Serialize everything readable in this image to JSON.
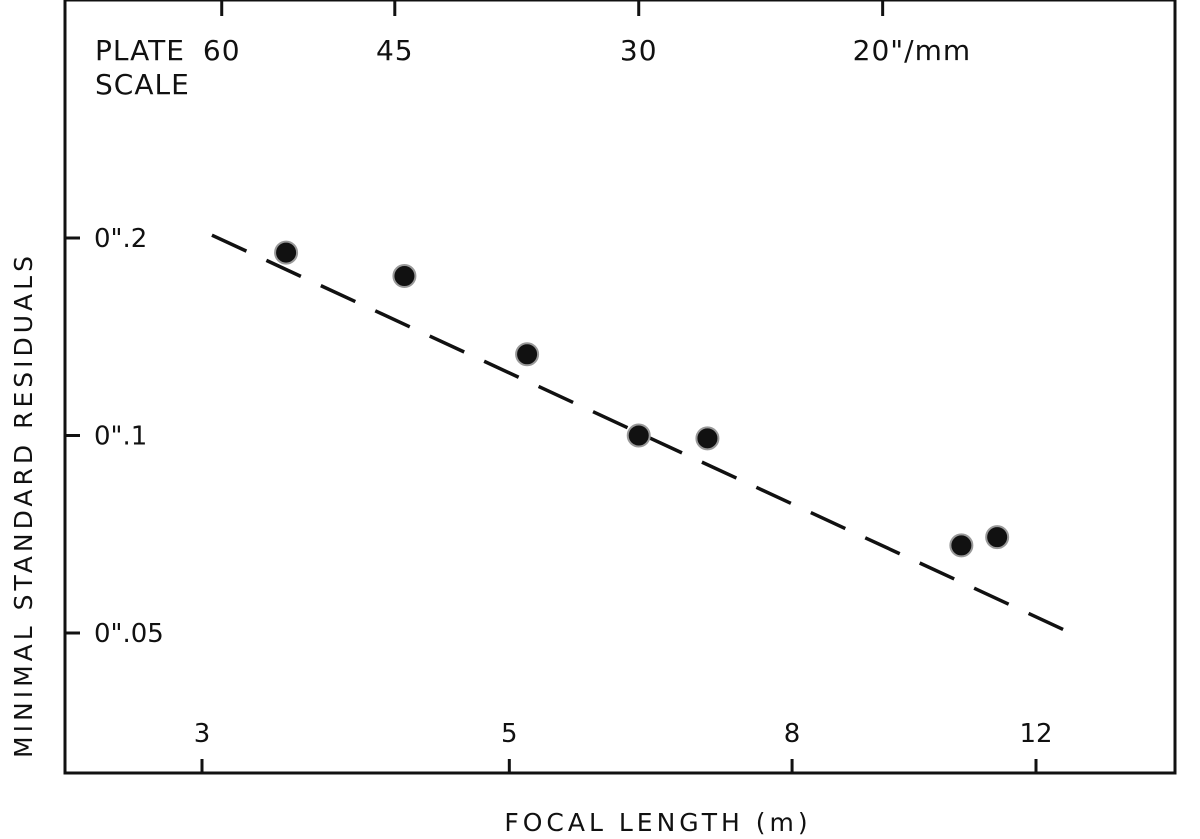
{
  "chart_data": {
    "type": "scatter",
    "title": "",
    "xlabel": "FOCAL LENGTH (m)",
    "ylabel": "MINIMAL STANDARD RESIDUALS",
    "x_scale": "log",
    "y_scale": "log",
    "xlim": [
      2.6,
      15.5
    ],
    "ylim": [
      0.037,
      0.5
    ],
    "x_ticks": [
      {
        "value": 3,
        "label": "3"
      },
      {
        "value": 5,
        "label": "5"
      },
      {
        "value": 8,
        "label": "8"
      },
      {
        "value": 12,
        "label": "12"
      }
    ],
    "y_ticks": [
      {
        "value": 0.2,
        "label": "0\".2"
      },
      {
        "value": 0.1,
        "label": "0\".1"
      },
      {
        "value": 0.05,
        "label": "0\".05"
      }
    ],
    "top_axis": {
      "title_line1": "PLATE",
      "title_line2": "SCALE",
      "ticks": [
        {
          "value": 60,
          "label": "60"
        },
        {
          "value": 45,
          "label": "45"
        },
        {
          "value": 30,
          "label": "30"
        },
        {
          "value": 20,
          "label": "20\"/mm"
        }
      ]
    },
    "points": [
      {
        "x": 3.45,
        "y": 0.19
      },
      {
        "x": 4.2,
        "y": 0.175
      },
      {
        "x": 5.15,
        "y": 0.133
      },
      {
        "x": 6.2,
        "y": 0.1
      },
      {
        "x": 6.95,
        "y": 0.099
      },
      {
        "x": 10.6,
        "y": 0.068
      },
      {
        "x": 11.25,
        "y": 0.07
      }
    ],
    "fit_line": {
      "style": "dashed",
      "from": {
        "x": 3.05,
        "y": 0.202
      },
      "to": {
        "x": 12.9,
        "y": 0.0493
      }
    },
    "grid": false,
    "legend": "none"
  }
}
